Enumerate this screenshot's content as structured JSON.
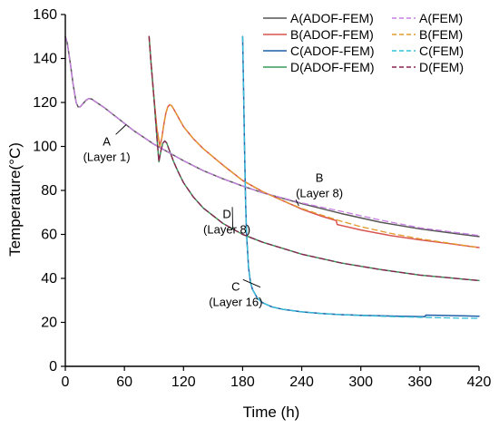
{
  "chart_data": {
    "type": "line",
    "xlabel": "Time (h)",
    "ylabel": "Temperature(°C)",
    "xlim": [
      0,
      420
    ],
    "ylim": [
      0,
      160
    ],
    "xticks": [
      0,
      60,
      120,
      180,
      240,
      300,
      360,
      420
    ],
    "yticks": [
      0,
      20,
      40,
      60,
      80,
      100,
      120,
      140,
      160
    ],
    "xtick_labels": [
      "0",
      "60",
      "120",
      "180",
      "240",
      "300",
      "360",
      "420"
    ],
    "ytick_labels": [
      "0",
      "20",
      "40",
      "60",
      "80",
      "100",
      "120",
      "140",
      "160"
    ],
    "grid": false,
    "legend_position": "top-right",
    "series": [
      {
        "name": "A(ADOF-FEM)",
        "color": "#555555",
        "dash": "solid",
        "x": [
          0,
          2,
          5,
          8,
          11,
          13,
          15,
          18,
          21,
          24,
          27,
          30,
          40,
          50,
          60,
          70,
          80,
          90,
          100,
          120,
          140,
          160,
          180,
          200,
          240,
          280,
          320,
          360,
          420
        ],
        "y": [
          150,
          147,
          138,
          128,
          120,
          118,
          118,
          119.5,
          121,
          121.8,
          121.5,
          120.5,
          117.5,
          114,
          110.5,
          107,
          104,
          101,
          98.5,
          93.5,
          89,
          85.3,
          82,
          79,
          74,
          69.5,
          65.5,
          62.5,
          59
        ]
      },
      {
        "name": "B(ADOF-FEM)",
        "color": "#d9534f",
        "dash": "solid",
        "x": [
          85,
          87,
          90,
          93,
          96,
          98,
          100,
          102,
          104,
          106,
          108,
          110,
          115,
          120,
          130,
          140,
          160,
          180,
          200,
          220,
          240,
          260,
          275,
          276,
          300,
          330,
          360,
          390,
          420
        ],
        "y": [
          150,
          138,
          122,
          108,
          100,
          104,
          110,
          115,
          118,
          119,
          118.5,
          117,
          113,
          109,
          103.5,
          99,
          91.5,
          84.5,
          79.5,
          75.5,
          71.5,
          68.3,
          66.3,
          64.5,
          62,
          59.5,
          57.5,
          55.8,
          54
        ]
      },
      {
        "name": "C(ADOF-FEM)",
        "color": "#1f5fa8",
        "dash": "solid",
        "x": [
          180,
          181,
          182,
          183,
          184,
          186,
          188,
          190,
          195,
          200,
          210,
          220,
          240,
          260,
          280,
          300,
          320,
          340,
          365,
          366,
          380,
          400,
          420
        ],
        "y": [
          150,
          125,
          98,
          75,
          60,
          45,
          38,
          35,
          31,
          29,
          27,
          26,
          24.8,
          24,
          23.5,
          23.2,
          23,
          22.8,
          22.6,
          23.3,
          23.2,
          23,
          22.8
        ]
      },
      {
        "name": "D(ADOF-FEM)",
        "color": "#3a9a5a",
        "dash": "solid",
        "x": [
          85,
          87,
          90,
          93,
          95,
          97,
          99,
          101,
          103,
          105,
          110,
          115,
          120,
          130,
          140,
          160,
          180,
          200,
          240,
          280,
          320,
          360,
          420
        ],
        "y": [
          150,
          138,
          122,
          104,
          93,
          98,
          101.5,
          102.5,
          101.5,
          99,
          93,
          88,
          83.5,
          77,
          72,
          65,
          60,
          56.5,
          51,
          47,
          44,
          41.5,
          39
        ]
      },
      {
        "name": "A(FEM)",
        "color": "#c77fe0",
        "dash": "dashed",
        "x": [
          0,
          2,
          5,
          8,
          11,
          13,
          15,
          18,
          21,
          24,
          27,
          30,
          40,
          50,
          60,
          70,
          80,
          90,
          100,
          120,
          140,
          160,
          180,
          200,
          240,
          280,
          320,
          360,
          420
        ],
        "y": [
          150,
          147,
          138,
          128,
          120,
          118,
          118,
          119.5,
          121,
          121.8,
          121.5,
          120.5,
          117.5,
          114,
          110.5,
          107,
          104,
          101,
          98.5,
          93.5,
          89,
          85.3,
          82,
          79,
          74.3,
          70.5,
          66.5,
          63,
          59.5
        ]
      },
      {
        "name": "B(FEM)",
        "color": "#e39a2b",
        "dash": "dashed",
        "x": [
          85,
          87,
          90,
          93,
          96,
          98,
          100,
          102,
          104,
          106,
          108,
          110,
          115,
          120,
          130,
          140,
          160,
          180,
          200,
          220,
          240,
          260,
          280,
          300,
          330,
          360,
          390,
          420
        ],
        "y": [
          150,
          138,
          122,
          108,
          100,
          104,
          110,
          115,
          118,
          119,
          118.5,
          117,
          113,
          109,
          103.5,
          99,
          91.5,
          84.5,
          79.5,
          75.5,
          71.8,
          68.8,
          66,
          63.5,
          60.5,
          58,
          56,
          54
        ]
      },
      {
        "name": "C(FEM)",
        "color": "#35c0d8",
        "dash": "dashed",
        "x": [
          180,
          181,
          182,
          183,
          184,
          186,
          188,
          190,
          195,
          200,
          210,
          220,
          240,
          260,
          280,
          300,
          320,
          340,
          360,
          380,
          400,
          420
        ],
        "y": [
          150,
          125,
          98,
          75,
          60,
          45,
          38,
          35,
          31,
          29,
          27,
          26,
          24.8,
          24,
          23.5,
          23.1,
          22.8,
          22.5,
          22.3,
          22.1,
          21.9,
          21.8
        ]
      },
      {
        "name": "D(FEM)",
        "color": "#8b2252",
        "dash": "dashed",
        "x": [
          85,
          87,
          90,
          93,
          95,
          97,
          99,
          101,
          103,
          105,
          110,
          115,
          120,
          130,
          140,
          160,
          180,
          200,
          240,
          280,
          320,
          360,
          420
        ],
        "y": [
          150,
          138,
          122,
          104,
          93,
          98,
          101.5,
          102.5,
          101.5,
          99,
          93,
          88,
          83.5,
          77,
          72,
          65,
          60,
          56.5,
          51,
          47,
          44,
          41.5,
          39
        ]
      }
    ],
    "annotations": [
      {
        "id": "A",
        "lines": [
          "A",
          "(Layer 1)"
        ],
        "text_x": 42,
        "text_y": 100.5,
        "target_x": 62,
        "target_y": 110
      },
      {
        "id": "B",
        "lines": [
          "B",
          "(Layer 8)"
        ],
        "text_x": 258,
        "text_y": 84,
        "target_x": 237,
        "target_y": 73
      },
      {
        "id": "D",
        "lines": [
          "D",
          "(Layer 8)"
        ],
        "text_x": 164,
        "text_y": 67.5,
        "target_x": 170,
        "target_y": 62.5
      },
      {
        "id": "C",
        "lines": [
          "C",
          "(Layer 16)"
        ],
        "text_x": 173,
        "text_y": 34.5,
        "target_x": 198,
        "target_y": 36
      }
    ]
  }
}
